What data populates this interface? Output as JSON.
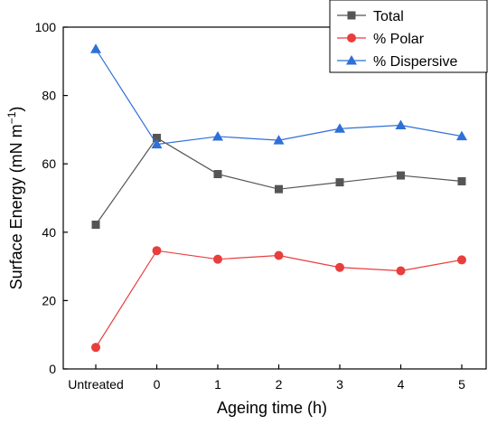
{
  "chart_data": {
    "type": "line",
    "categories": [
      "Untreated",
      "0",
      "1",
      "2",
      "3",
      "4",
      "5"
    ],
    "xlabel": "Ageing time (h)",
    "ylabel_main": "Surface Energy (mN m",
    "ylabel_sup": "−1",
    "ylabel_close": ")",
    "ylim": [
      0,
      100
    ],
    "yticks": [
      "0",
      "20",
      "40",
      "60",
      "80",
      "100"
    ],
    "grid": false,
    "legend_position": "top-right",
    "series": [
      {
        "name": "Total",
        "color": "#555555",
        "marker": "square",
        "values": [
          42.2,
          67.6,
          57.0,
          52.6,
          54.6,
          56.6,
          54.9
        ]
      },
      {
        "name": "% Polar",
        "color": "#e83e3e",
        "marker": "circle",
        "values": [
          6.3,
          34.6,
          32.1,
          33.2,
          29.7,
          28.7,
          31.9
        ]
      },
      {
        "name": "% Dispersive",
        "color": "#2f6fd8",
        "marker": "triangle",
        "values": [
          93.6,
          65.7,
          68.0,
          66.9,
          70.3,
          71.3,
          68.1
        ]
      }
    ]
  }
}
